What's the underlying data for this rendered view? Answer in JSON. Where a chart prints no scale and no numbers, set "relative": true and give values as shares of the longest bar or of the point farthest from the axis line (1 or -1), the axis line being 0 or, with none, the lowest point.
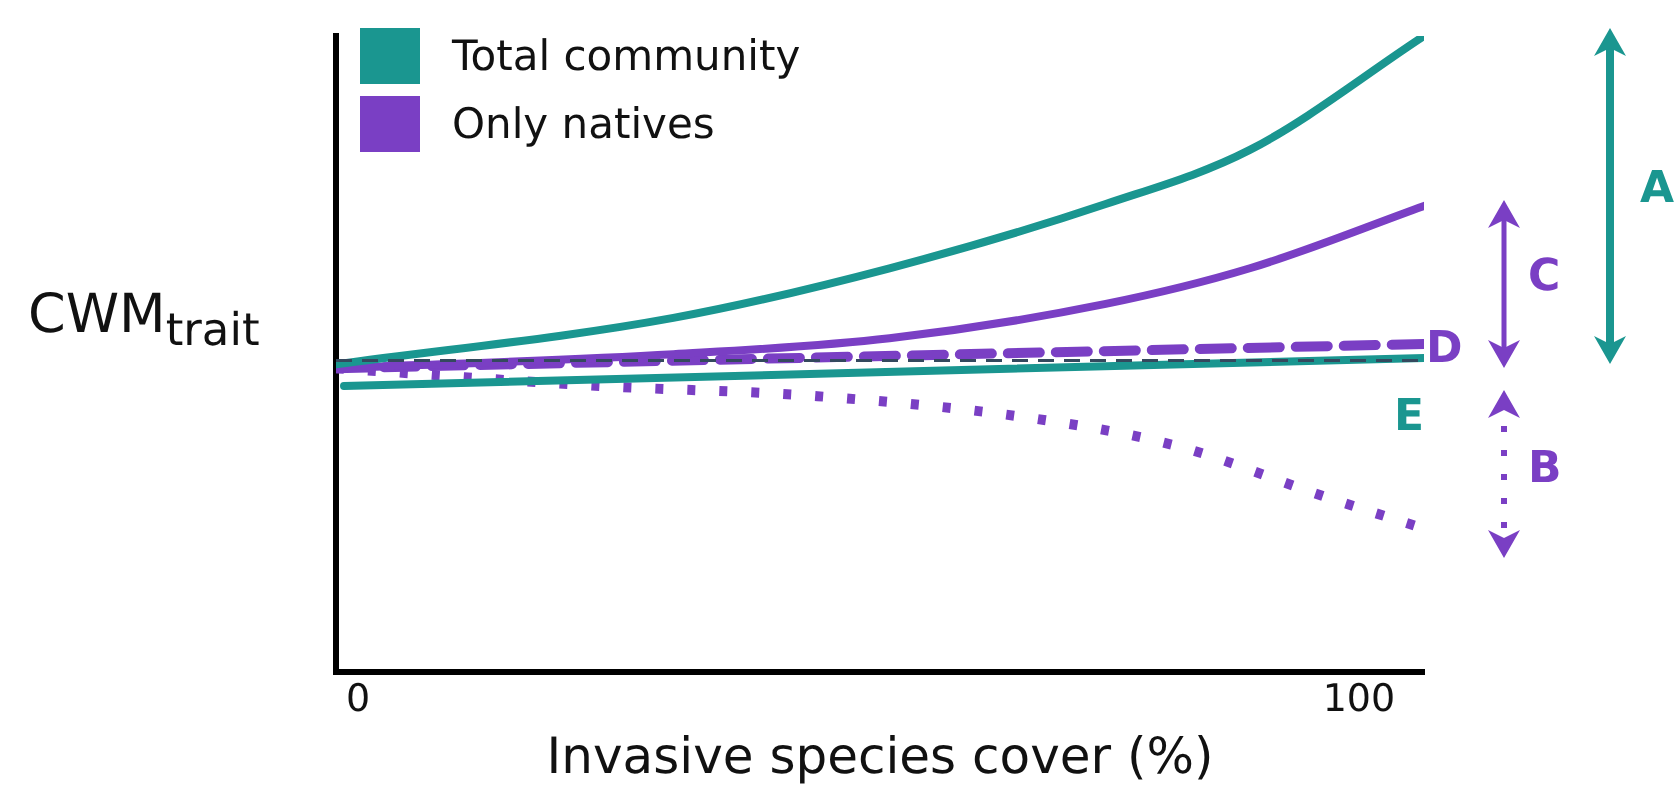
{
  "chart_data": {
    "type": "line",
    "relative": true,
    "xlabel": "Invasive species cover (%)",
    "ylabel": "CWM$_{trait}$",
    "xlim": [
      -2.2,
      106.5
    ],
    "xticks": [
      0,
      100
    ],
    "legend": "top left",
    "grid": false,
    "marker": "none",
    "series": [
      {
        "name": "Total community",
        "color": "#1a9690",
        "line_style": "solid",
        "x": [
          -2.2,
          31.5,
          53.1,
          74.7,
          89.1,
          106.5
        ],
        "values": [
          0.484,
          0.557,
          0.635,
          0.736,
          0.821,
          1
        ]
      },
      {
        "name": "Only natives",
        "color": "#7a3fc4",
        "line_style": "solid",
        "x": [
          -2.2,
          31.5,
          53.1,
          74.7,
          89.1,
          106.5
        ],
        "values": [
          0.478,
          0.5,
          0.525,
          0.579,
          0.635,
          0.733
        ]
      },
      {
        "color": "#7a3fc4",
        "line_style": "dashed",
        "x": [
          -2.2,
          106.5
        ],
        "values": [
          0.478,
          0.516
        ]
      },
      {
        "color": "#1a9690",
        "line_style": "solid",
        "x": [
          -1.4,
          106.5
        ],
        "values": [
          0.45,
          0.494
        ]
      },
      {
        "color": "#7a3fc4",
        "line_style": "dotted",
        "x": [
          -2.2,
          24.2,
          45.9,
          67.5,
          82,
          96.4,
          106.5
        ],
        "values": [
          0.478,
          0.45,
          0.434,
          0.399,
          0.355,
          0.277,
          0.226
        ]
      }
    ],
    "ref_lines": [
      {
        "axis": "y",
        "value": 0.49,
        "color": "#34495e",
        "line_style": "dashed"
      }
    ],
    "annotations": [
      "A",
      "C",
      "B",
      "D",
      "E"
    ]
  }
}
